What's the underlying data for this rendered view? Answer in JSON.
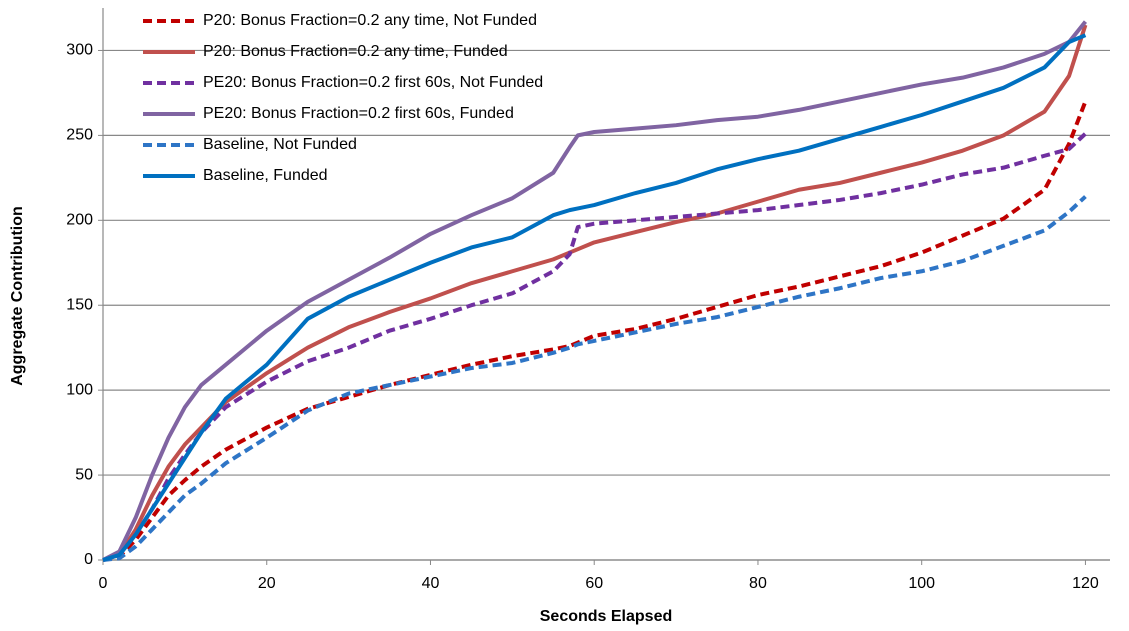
{
  "chart_data": {
    "type": "line",
    "x_label": "Seconds Elapsed",
    "y_label": "Aggregate Contribution",
    "x": [
      0,
      2,
      4,
      6,
      8,
      10,
      12,
      15,
      20,
      25,
      30,
      35,
      40,
      45,
      50,
      55,
      57,
      58,
      60,
      65,
      70,
      75,
      80,
      85,
      90,
      95,
      100,
      105,
      110,
      115,
      118,
      120
    ],
    "series": [
      {
        "name": "P20: Bonus Fraction=0.2 any time, Not Funded",
        "color": "#c00000",
        "dashed": true,
        "values": [
          0,
          2,
          12,
          25,
          38,
          47,
          55,
          65,
          78,
          89,
          96,
          103,
          109,
          115,
          120,
          124,
          126,
          128,
          132,
          136,
          142,
          149,
          156,
          161,
          167,
          173,
          181,
          191,
          201,
          218,
          245,
          270
        ]
      },
      {
        "name": "P20: Bonus Fraction=0.2 any time, Funded",
        "color": "#c0504d",
        "dashed": false,
        "values": [
          0,
          3,
          18,
          38,
          55,
          68,
          78,
          93,
          110,
          125,
          137,
          146,
          154,
          163,
          170,
          177,
          181,
          183,
          187,
          193,
          199,
          204,
          211,
          218,
          222,
          228,
          234,
          241,
          250,
          264,
          285,
          315
        ]
      },
      {
        "name": "PE20: Bonus Fraction=0.2 first 60s, Not Funded",
        "color": "#7030a0",
        "dashed": true,
        "values": [
          0,
          3,
          15,
          30,
          48,
          62,
          75,
          90,
          105,
          117,
          125,
          135,
          142,
          150,
          157,
          170,
          180,
          196,
          198,
          200,
          202,
          204,
          206,
          209,
          212,
          216,
          221,
          227,
          231,
          238,
          242,
          251
        ]
      },
      {
        "name": "PE20: Bonus Fraction=0.2 first 60s, Funded",
        "color": "#8064a2",
        "dashed": false,
        "values": [
          0,
          5,
          25,
          50,
          72,
          90,
          103,
          115,
          135,
          152,
          165,
          178,
          192,
          203,
          213,
          228,
          243,
          250,
          252,
          254,
          256,
          259,
          261,
          265,
          270,
          275,
          280,
          284,
          290,
          298,
          305,
          317
        ]
      },
      {
        "name": "Baseline, Not Funded",
        "color": "#2e75c6",
        "dashed": true,
        "values": [
          0,
          1,
          8,
          18,
          28,
          38,
          45,
          57,
          72,
          88,
          98,
          103,
          108,
          113,
          116,
          122,
          125,
          127,
          129,
          134,
          139,
          143,
          149,
          155,
          160,
          166,
          170,
          176,
          185,
          194,
          205,
          214
        ]
      },
      {
        "name": "Baseline, Funded",
        "color": "#0070c0",
        "dashed": false,
        "values": [
          0,
          3,
          15,
          30,
          45,
          60,
          75,
          95,
          115,
          142,
          155,
          165,
          175,
          184,
          190,
          203,
          206,
          207,
          209,
          216,
          222,
          230,
          236,
          241,
          248,
          255,
          262,
          270,
          278,
          290,
          305,
          309
        ]
      }
    ],
    "xlim": [
      0,
      123
    ],
    "xticks": [
      0,
      20,
      40,
      60,
      80,
      100,
      120
    ],
    "ylim": [
      0,
      325
    ],
    "yticks": [
      0,
      50,
      100,
      150,
      200,
      250,
      300
    ],
    "grid": true,
    "legend": "top-left"
  }
}
